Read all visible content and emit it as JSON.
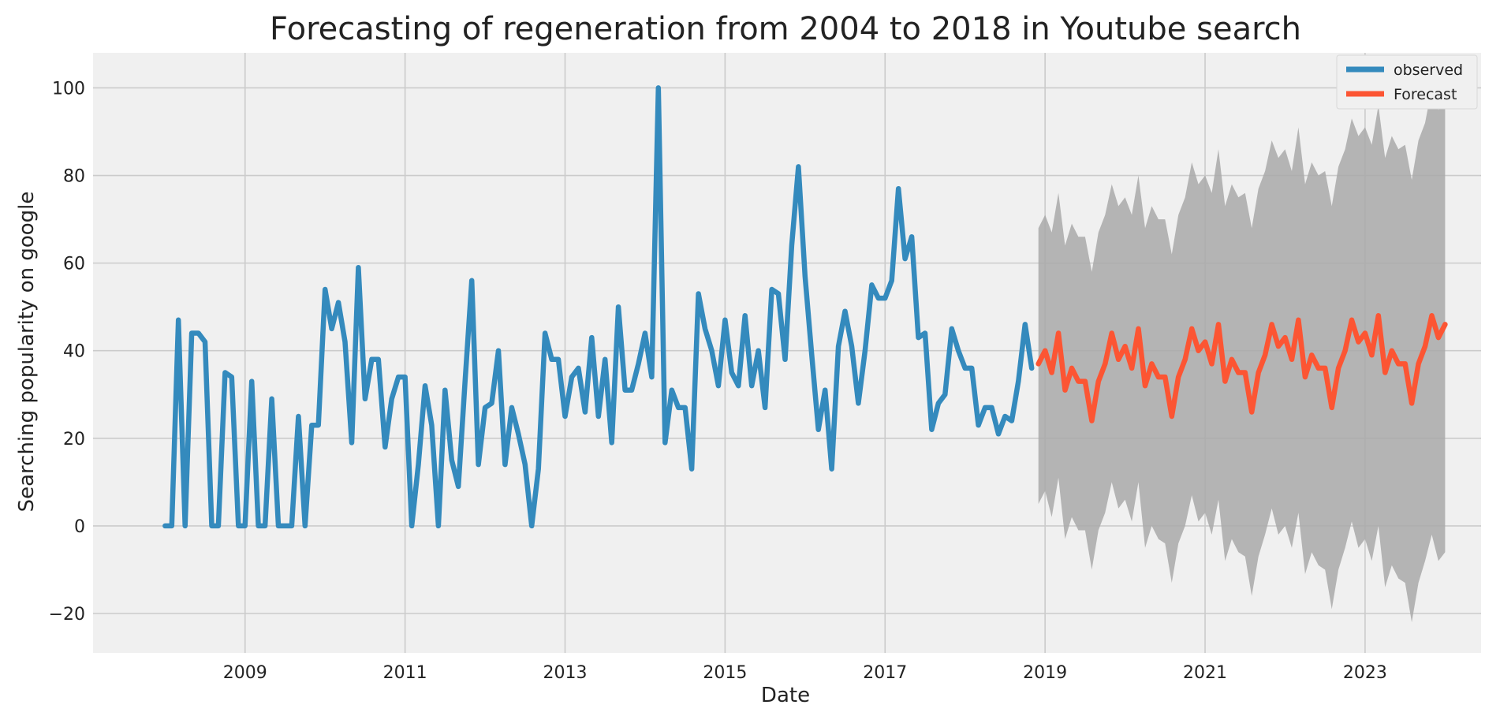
{
  "chart_data": {
    "type": "line",
    "title": "Forecasting of regeneration from 2004 to 2018 in Youtube search",
    "xlabel": "Date",
    "ylabel": "Searching popularity on google",
    "xlim": [
      2007.1,
      2024.45
    ],
    "ylim": [
      -29,
      108
    ],
    "x_ticks": [
      2009,
      2011,
      2013,
      2015,
      2017,
      2019,
      2021,
      2023
    ],
    "y_ticks": [
      -20,
      0,
      20,
      40,
      60,
      80,
      100
    ],
    "grid": true,
    "legend_position": "top-right",
    "colors": {
      "observed": "#348ABD",
      "forecast": "#FC5533",
      "confidence_band": "#a9a9a9",
      "background": "#f0f0f0"
    },
    "series": [
      {
        "name": "observed",
        "x_start": 2008.0,
        "x_step": 0.083333,
        "values": [
          0,
          0,
          47,
          0,
          44,
          44,
          42,
          0,
          0,
          35,
          34,
          0,
          0,
          33,
          0,
          0,
          29,
          0,
          0,
          0,
          25,
          0,
          23,
          23,
          54,
          45,
          51,
          42,
          19,
          59,
          29,
          38,
          38,
          18,
          29,
          34,
          34,
          0,
          14,
          32,
          23,
          0,
          31,
          15,
          9,
          33,
          56,
          14,
          27,
          28,
          40,
          14,
          27,
          21,
          14,
          0,
          13,
          44,
          38,
          38,
          25,
          34,
          36,
          26,
          43,
          25,
          38,
          19,
          50,
          31,
          31,
          37,
          44,
          34,
          100,
          19,
          31,
          27,
          27,
          13,
          53,
          45,
          40,
          32,
          47,
          35,
          32,
          48,
          32,
          40,
          27,
          54,
          53,
          38,
          64,
          82,
          57,
          39,
          22,
          31,
          13,
          41,
          49,
          41,
          28,
          40,
          55,
          52,
          52,
          56,
          77,
          61,
          66,
          43,
          44,
          22,
          28,
          30,
          45,
          40,
          36,
          36,
          23,
          27,
          27,
          21,
          25,
          24,
          33,
          46,
          36
        ]
      },
      {
        "name": "Forecast",
        "x_start": 2018.917,
        "x_step": 0.083333,
        "values": [
          37,
          40,
          35,
          44,
          31,
          36,
          33,
          33,
          24,
          33,
          37,
          44,
          38,
          41,
          36,
          45,
          32,
          37,
          34,
          34,
          25,
          34,
          38,
          45,
          40,
          42,
          37,
          46,
          33,
          38,
          35,
          35,
          26,
          35,
          39,
          46,
          41,
          43,
          38,
          47,
          34,
          39,
          36,
          36,
          27,
          36,
          40,
          47,
          42,
          44,
          39,
          48,
          35,
          40,
          37,
          37,
          28,
          37,
          41,
          48,
          43,
          46
        ],
        "upper": [
          68,
          71,
          67,
          76,
          64,
          69,
          66,
          66,
          58,
          67,
          71,
          78,
          73,
          75,
          71,
          80,
          68,
          73,
          70,
          70,
          62,
          71,
          75,
          83,
          78,
          80,
          76,
          86,
          73,
          78,
          75,
          76,
          68,
          77,
          81,
          88,
          84,
          86,
          81,
          91,
          78,
          83,
          80,
          81,
          73,
          82,
          86,
          93,
          89,
          91,
          87,
          96,
          84,
          89,
          86,
          87,
          79,
          88,
          92,
          100,
          95,
          97
        ],
        "lower": [
          5,
          8,
          2,
          11,
          -3,
          2,
          -1,
          -1,
          -10,
          -1,
          3,
          10,
          4,
          6,
          1,
          10,
          -5,
          0,
          -3,
          -4,
          -13,
          -4,
          0,
          7,
          1,
          3,
          -2,
          6,
          -8,
          -3,
          -6,
          -7,
          -16,
          -7,
          -2,
          4,
          -2,
          0,
          -5,
          3,
          -11,
          -6,
          -9,
          -10,
          -19,
          -10,
          -5,
          1,
          -5,
          -3,
          -8,
          0,
          -14,
          -9,
          -12,
          -13,
          -22,
          -13,
          -8,
          -2,
          -8,
          -6
        ]
      }
    ]
  }
}
